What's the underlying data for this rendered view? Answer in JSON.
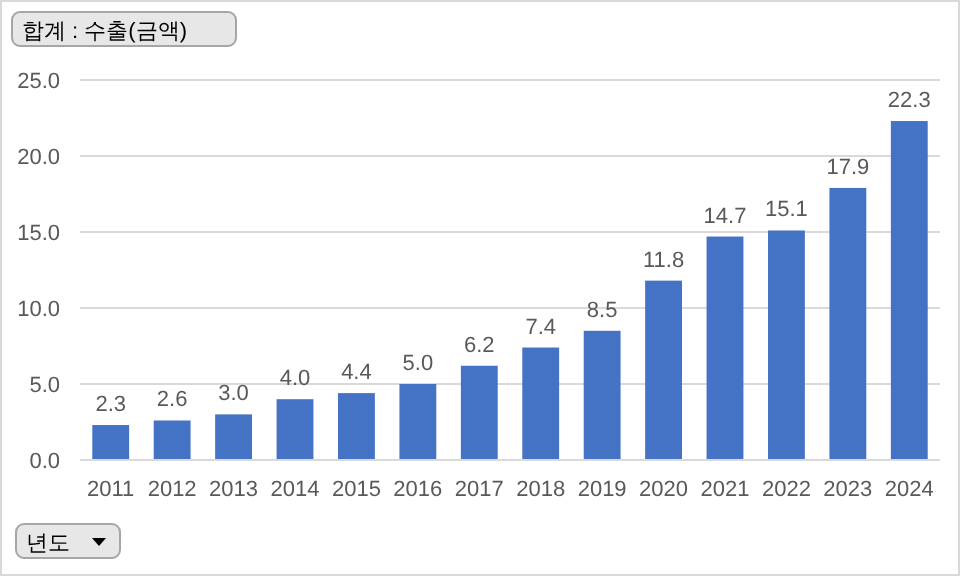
{
  "chart_data": {
    "type": "bar",
    "title": "합계 : 수출(금액)",
    "xlabel": "년도",
    "categories": [
      "2011",
      "2012",
      "2013",
      "2014",
      "2015",
      "2016",
      "2017",
      "2018",
      "2019",
      "2020",
      "2021",
      "2022",
      "2023",
      "2024"
    ],
    "values": [
      2.3,
      2.6,
      3.0,
      4.0,
      4.4,
      5.0,
      6.2,
      7.4,
      8.5,
      11.8,
      14.7,
      15.1,
      17.9,
      22.3
    ],
    "value_labels": [
      "2.3",
      "2.6",
      "3.0",
      "4.0",
      "4.4",
      "5.0",
      "6.2",
      "7.4",
      "8.5",
      "11.8",
      "14.7",
      "15.1",
      "17.9",
      "22.3"
    ],
    "color": "#4472c4",
    "ylim": [
      0,
      25
    ],
    "yticks": [
      {
        "value": 0,
        "label": "0.0"
      },
      {
        "value": 5,
        "label": "5.0"
      },
      {
        "value": 10,
        "label": "10.0"
      },
      {
        "value": 15,
        "label": "15.0"
      },
      {
        "value": 20,
        "label": "20.0"
      },
      {
        "value": 25,
        "label": "25.0"
      }
    ],
    "grid": "y"
  }
}
